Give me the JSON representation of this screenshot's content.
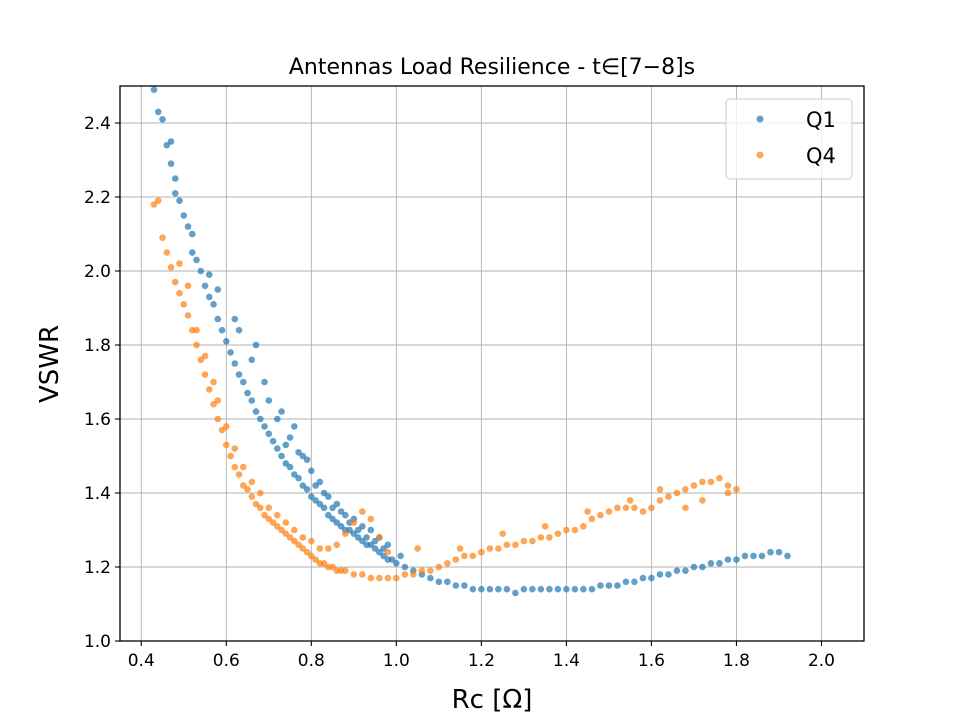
{
  "chart_data": {
    "type": "scatter",
    "title": "Antennas Load Resilience - t∈[7−8]s",
    "xlabel": "Rc [Ω]",
    "ylabel": "VSWR",
    "xlim": [
      0.35,
      2.1
    ],
    "ylim": [
      1.0,
      2.5
    ],
    "x_ticks": [
      "0.4",
      "0.6",
      "0.8",
      "1.0",
      "1.2",
      "1.4",
      "1.6",
      "1.8",
      "2.0"
    ],
    "y_ticks": [
      "1.0",
      "1.2",
      "1.4",
      "1.6",
      "1.8",
      "2.0",
      "2.2",
      "2.4"
    ],
    "grid": true,
    "legend_position": "top-right",
    "series": [
      {
        "name": "Q1",
        "color": "#1f77b4",
        "points": [
          [
            0.43,
            2.49
          ],
          [
            0.44,
            2.43
          ],
          [
            0.45,
            2.41
          ],
          [
            0.46,
            2.34
          ],
          [
            0.47,
            2.35
          ],
          [
            0.47,
            2.29
          ],
          [
            0.48,
            2.25
          ],
          [
            0.48,
            2.21
          ],
          [
            0.49,
            2.19
          ],
          [
            0.5,
            2.15
          ],
          [
            0.51,
            2.12
          ],
          [
            0.52,
            2.1
          ],
          [
            0.52,
            2.05
          ],
          [
            0.53,
            2.03
          ],
          [
            0.54,
            2.0
          ],
          [
            0.55,
            1.96
          ],
          [
            0.56,
            1.93
          ],
          [
            0.57,
            1.91
          ],
          [
            0.58,
            1.87
          ],
          [
            0.59,
            1.84
          ],
          [
            0.6,
            1.81
          ],
          [
            0.61,
            1.78
          ],
          [
            0.62,
            1.75
          ],
          [
            0.63,
            1.72
          ],
          [
            0.64,
            1.7
          ],
          [
            0.65,
            1.67
          ],
          [
            0.66,
            1.65
          ],
          [
            0.67,
            1.62
          ],
          [
            0.68,
            1.6
          ],
          [
            0.69,
            1.58
          ],
          [
            0.7,
            1.56
          ],
          [
            0.71,
            1.54
          ],
          [
            0.72,
            1.52
          ],
          [
            0.73,
            1.5
          ],
          [
            0.74,
            1.48
          ],
          [
            0.75,
            1.47
          ],
          [
            0.76,
            1.45
          ],
          [
            0.77,
            1.44
          ],
          [
            0.78,
            1.42
          ],
          [
            0.79,
            1.41
          ],
          [
            0.8,
            1.39
          ],
          [
            0.81,
            1.38
          ],
          [
            0.82,
            1.37
          ],
          [
            0.83,
            1.36
          ],
          [
            0.84,
            1.34
          ],
          [
            0.85,
            1.33
          ],
          [
            0.86,
            1.32
          ],
          [
            0.87,
            1.31
          ],
          [
            0.88,
            1.3
          ],
          [
            0.89,
            1.3
          ],
          [
            0.9,
            1.29
          ],
          [
            0.91,
            1.28
          ],
          [
            0.92,
            1.27
          ],
          [
            0.93,
            1.26
          ],
          [
            0.94,
            1.26
          ],
          [
            0.95,
            1.25
          ],
          [
            0.96,
            1.24
          ],
          [
            0.97,
            1.23
          ],
          [
            0.98,
            1.22
          ],
          [
            0.99,
            1.22
          ],
          [
            1.0,
            1.21
          ],
          [
            1.02,
            1.2
          ],
          [
            1.04,
            1.19
          ],
          [
            1.06,
            1.18
          ],
          [
            1.08,
            1.17
          ],
          [
            1.1,
            1.16
          ],
          [
            1.12,
            1.16
          ],
          [
            1.14,
            1.15
          ],
          [
            1.16,
            1.15
          ],
          [
            1.18,
            1.14
          ],
          [
            1.2,
            1.14
          ],
          [
            1.22,
            1.14
          ],
          [
            1.24,
            1.14
          ],
          [
            1.26,
            1.14
          ],
          [
            1.28,
            1.13
          ],
          [
            1.3,
            1.14
          ],
          [
            1.32,
            1.14
          ],
          [
            1.34,
            1.14
          ],
          [
            1.36,
            1.14
          ],
          [
            1.38,
            1.14
          ],
          [
            1.4,
            1.14
          ],
          [
            1.42,
            1.14
          ],
          [
            1.44,
            1.14
          ],
          [
            1.46,
            1.14
          ],
          [
            1.48,
            1.15
          ],
          [
            1.5,
            1.15
          ],
          [
            1.52,
            1.15
          ],
          [
            1.54,
            1.16
          ],
          [
            1.56,
            1.16
          ],
          [
            1.58,
            1.17
          ],
          [
            1.6,
            1.17
          ],
          [
            1.62,
            1.18
          ],
          [
            1.64,
            1.18
          ],
          [
            1.66,
            1.19
          ],
          [
            1.68,
            1.19
          ],
          [
            1.7,
            1.2
          ],
          [
            1.72,
            1.2
          ],
          [
            1.74,
            1.21
          ],
          [
            1.76,
            1.21
          ],
          [
            1.78,
            1.22
          ],
          [
            1.8,
            1.22
          ],
          [
            1.82,
            1.23
          ],
          [
            1.84,
            1.23
          ],
          [
            1.86,
            1.23
          ],
          [
            1.88,
            1.24
          ],
          [
            1.9,
            1.24
          ],
          [
            1.92,
            1.23
          ],
          [
            0.56,
            1.99
          ],
          [
            0.58,
            1.95
          ],
          [
            0.62,
            1.87
          ],
          [
            0.63,
            1.84
          ],
          [
            0.66,
            1.76
          ],
          [
            0.67,
            1.8
          ],
          [
            0.69,
            1.7
          ],
          [
            0.7,
            1.65
          ],
          [
            0.72,
            1.6
          ],
          [
            0.73,
            1.62
          ],
          [
            0.75,
            1.55
          ],
          [
            0.76,
            1.58
          ],
          [
            0.78,
            1.5
          ],
          [
            0.79,
            1.49
          ],
          [
            0.8,
            1.46
          ],
          [
            0.82,
            1.43
          ],
          [
            0.84,
            1.39
          ],
          [
            0.86,
            1.37
          ],
          [
            0.88,
            1.34
          ],
          [
            0.9,
            1.33
          ],
          [
            0.92,
            1.31
          ],
          [
            0.94,
            1.3
          ],
          [
            0.96,
            1.28
          ],
          [
            0.98,
            1.26
          ],
          [
            0.74,
            1.53
          ],
          [
            0.77,
            1.51
          ],
          [
            0.81,
            1.42
          ],
          [
            0.83,
            1.4
          ],
          [
            0.85,
            1.36
          ],
          [
            0.87,
            1.35
          ],
          [
            0.89,
            1.32
          ],
          [
            0.91,
            1.3
          ],
          [
            0.93,
            1.28
          ],
          [
            0.95,
            1.27
          ],
          [
            0.97,
            1.25
          ],
          [
            1.01,
            1.23
          ]
        ]
      },
      {
        "name": "Q4",
        "color": "#ff7f0e",
        "points": [
          [
            0.43,
            2.18
          ],
          [
            0.44,
            2.19
          ],
          [
            0.45,
            2.09
          ],
          [
            0.46,
            2.05
          ],
          [
            0.47,
            2.01
          ],
          [
            0.48,
            1.97
          ],
          [
            0.49,
            1.94
          ],
          [
            0.5,
            1.91
          ],
          [
            0.51,
            1.88
          ],
          [
            0.52,
            1.84
          ],
          [
            0.53,
            1.8
          ],
          [
            0.54,
            1.76
          ],
          [
            0.55,
            1.72
          ],
          [
            0.56,
            1.68
          ],
          [
            0.57,
            1.64
          ],
          [
            0.58,
            1.6
          ],
          [
            0.59,
            1.57
          ],
          [
            0.6,
            1.53
          ],
          [
            0.61,
            1.5
          ],
          [
            0.62,
            1.47
          ],
          [
            0.63,
            1.45
          ],
          [
            0.64,
            1.42
          ],
          [
            0.65,
            1.41
          ],
          [
            0.66,
            1.39
          ],
          [
            0.67,
            1.37
          ],
          [
            0.68,
            1.36
          ],
          [
            0.69,
            1.34
          ],
          [
            0.7,
            1.33
          ],
          [
            0.71,
            1.32
          ],
          [
            0.72,
            1.31
          ],
          [
            0.73,
            1.3
          ],
          [
            0.74,
            1.29
          ],
          [
            0.75,
            1.28
          ],
          [
            0.76,
            1.27
          ],
          [
            0.77,
            1.26
          ],
          [
            0.78,
            1.25
          ],
          [
            0.79,
            1.24
          ],
          [
            0.8,
            1.23
          ],
          [
            0.81,
            1.22
          ],
          [
            0.82,
            1.21
          ],
          [
            0.83,
            1.21
          ],
          [
            0.84,
            1.2
          ],
          [
            0.85,
            1.2
          ],
          [
            0.86,
            1.19
          ],
          [
            0.87,
            1.19
          ],
          [
            0.88,
            1.19
          ],
          [
            0.9,
            1.18
          ],
          [
            0.92,
            1.18
          ],
          [
            0.94,
            1.17
          ],
          [
            0.96,
            1.17
          ],
          [
            0.98,
            1.17
          ],
          [
            1.0,
            1.17
          ],
          [
            1.02,
            1.18
          ],
          [
            1.04,
            1.18
          ],
          [
            1.06,
            1.19
          ],
          [
            1.08,
            1.19
          ],
          [
            1.1,
            1.2
          ],
          [
            1.12,
            1.21
          ],
          [
            1.14,
            1.22
          ],
          [
            1.16,
            1.23
          ],
          [
            1.18,
            1.23
          ],
          [
            1.2,
            1.24
          ],
          [
            1.22,
            1.25
          ],
          [
            1.24,
            1.25
          ],
          [
            1.26,
            1.26
          ],
          [
            1.28,
            1.26
          ],
          [
            1.3,
            1.27
          ],
          [
            1.32,
            1.27
          ],
          [
            1.34,
            1.28
          ],
          [
            1.36,
            1.28
          ],
          [
            1.38,
            1.29
          ],
          [
            1.4,
            1.3
          ],
          [
            1.42,
            1.3
          ],
          [
            1.44,
            1.31
          ],
          [
            1.46,
            1.33
          ],
          [
            1.48,
            1.34
          ],
          [
            1.5,
            1.35
          ],
          [
            1.52,
            1.36
          ],
          [
            1.54,
            1.36
          ],
          [
            1.56,
            1.36
          ],
          [
            1.58,
            1.35
          ],
          [
            1.6,
            1.36
          ],
          [
            1.62,
            1.38
          ],
          [
            1.64,
            1.39
          ],
          [
            1.66,
            1.4
          ],
          [
            1.68,
            1.41
          ],
          [
            1.7,
            1.42
          ],
          [
            1.72,
            1.43
          ],
          [
            1.74,
            1.43
          ],
          [
            1.76,
            1.44
          ],
          [
            1.78,
            1.42
          ],
          [
            1.8,
            1.41
          ],
          [
            0.49,
            2.02
          ],
          [
            0.51,
            1.96
          ],
          [
            0.53,
            1.84
          ],
          [
            0.55,
            1.77
          ],
          [
            0.57,
            1.7
          ],
          [
            0.58,
            1.65
          ],
          [
            0.6,
            1.58
          ],
          [
            0.62,
            1.52
          ],
          [
            0.64,
            1.47
          ],
          [
            0.66,
            1.43
          ],
          [
            0.68,
            1.4
          ],
          [
            0.7,
            1.36
          ],
          [
            0.72,
            1.34
          ],
          [
            0.74,
            1.32
          ],
          [
            0.76,
            1.3
          ],
          [
            0.78,
            1.28
          ],
          [
            0.8,
            1.27
          ],
          [
            0.82,
            1.25
          ],
          [
            0.84,
            1.25
          ],
          [
            0.86,
            1.26
          ],
          [
            0.88,
            1.29
          ],
          [
            0.9,
            1.32
          ],
          [
            0.92,
            1.35
          ],
          [
            0.94,
            1.33
          ],
          [
            0.96,
            1.28
          ],
          [
            0.98,
            1.24
          ],
          [
            1.05,
            1.25
          ],
          [
            1.15,
            1.25
          ],
          [
            1.25,
            1.29
          ],
          [
            1.35,
            1.31
          ],
          [
            1.45,
            1.35
          ],
          [
            1.55,
            1.38
          ],
          [
            1.62,
            1.41
          ],
          [
            1.68,
            1.36
          ],
          [
            1.72,
            1.38
          ],
          [
            1.78,
            1.4
          ]
        ]
      }
    ]
  }
}
